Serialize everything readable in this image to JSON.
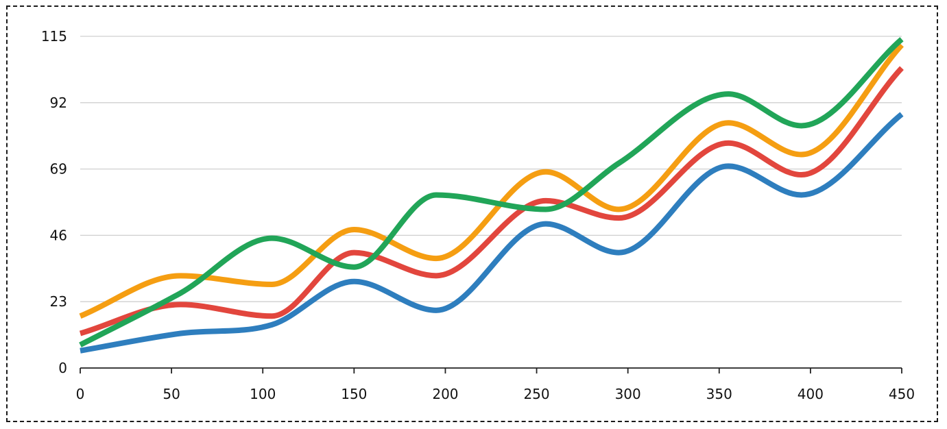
{
  "chart_data": {
    "type": "line",
    "smooth": true,
    "title": "",
    "xlabel": "",
    "ylabel": "",
    "xlim": [
      0,
      450
    ],
    "ylim": [
      0,
      115
    ],
    "x_ticks": [
      "0",
      "50",
      "100",
      "150",
      "200",
      "250",
      "300",
      "350",
      "400",
      "450"
    ],
    "y_ticks": [
      "0",
      "23",
      "46",
      "69",
      "92",
      "115"
    ],
    "grid": "horizontal",
    "legend": "none",
    "x": [
      0,
      55,
      105,
      150,
      195,
      255,
      295,
      355,
      395,
      450
    ],
    "series": [
      {
        "color": "#2e7ebe",
        "values": [
          6,
          12,
          15,
          30,
          20,
          50,
          40,
          70,
          60,
          88
        ]
      },
      {
        "color": "#e2463d",
        "values": [
          12,
          22,
          18,
          40,
          32,
          58,
          52,
          78,
          67,
          104
        ]
      },
      {
        "color": "#f59e12",
        "values": [
          18,
          32,
          29,
          48,
          38,
          68,
          55,
          85,
          74,
          112
        ]
      },
      {
        "color": "#21a558",
        "values": [
          8,
          26,
          45,
          35,
          60,
          55,
          71,
          95,
          84,
          114
        ]
      }
    ]
  }
}
